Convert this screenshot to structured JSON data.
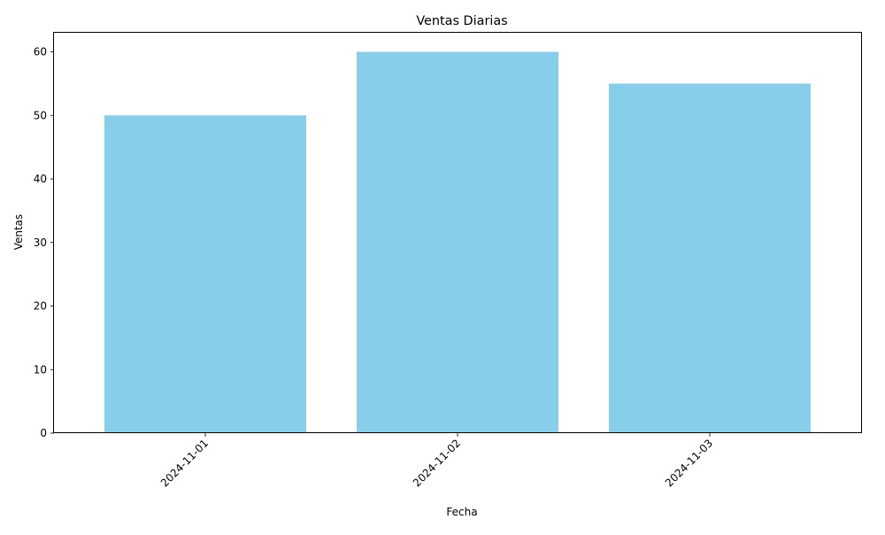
{
  "chart_data": {
    "type": "bar",
    "title": "Ventas Diarias",
    "xlabel": "Fecha",
    "ylabel": "Ventas",
    "categories": [
      "2024-11-01",
      "2024-11-02",
      "2024-11-03"
    ],
    "values": [
      50,
      60,
      55
    ],
    "ylim": [
      0,
      63
    ],
    "yticks": [
      0,
      10,
      20,
      30,
      40,
      50,
      60
    ],
    "grid": false,
    "legend": "none",
    "bar_color": "#87ceeb",
    "axis_color": "#000000"
  }
}
